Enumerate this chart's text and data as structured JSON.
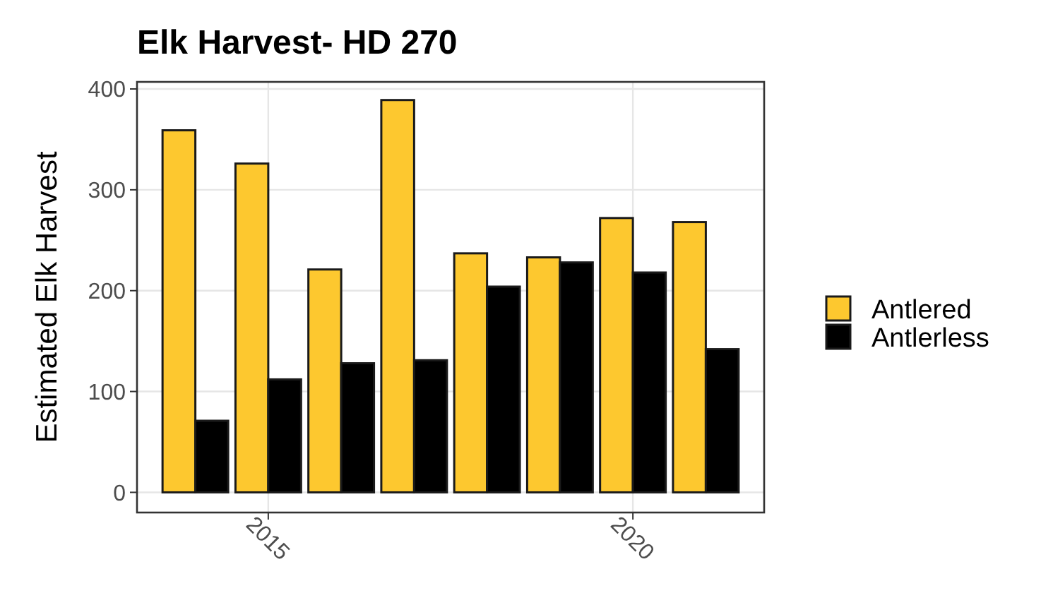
{
  "chart_data": {
    "type": "bar",
    "title": "Elk Harvest- HD 270",
    "ylabel": "Estimated Elk Harvest",
    "x": [
      2014,
      2015,
      2016,
      2017,
      2018,
      2019,
      2020,
      2021
    ],
    "series": [
      {
        "name": "Antlered",
        "color": "#fdc82f",
        "values": [
          359,
          326,
          221,
          389,
          237,
          233,
          272,
          268
        ]
      },
      {
        "name": "Antlerless",
        "color": "#000000",
        "values": [
          71,
          112,
          128,
          131,
          204,
          228,
          218,
          142
        ]
      }
    ],
    "xlim": [
      2013.2,
      2021.8
    ],
    "xticks": [
      2015,
      2020
    ],
    "ylim": [
      -20,
      407
    ],
    "yticks": [
      0,
      100,
      200,
      300,
      400
    ],
    "grid": true,
    "legend": "right"
  }
}
